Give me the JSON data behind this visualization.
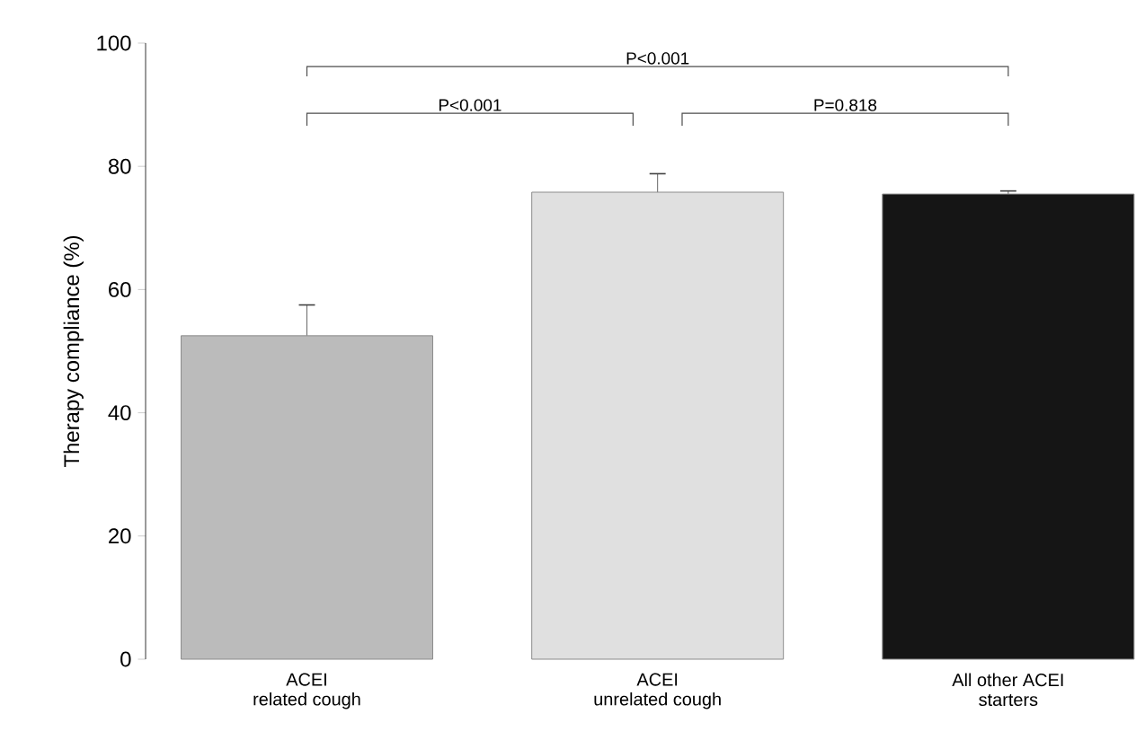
{
  "chart_data": {
    "type": "bar",
    "ylabel": "Therapy compliance (%)",
    "categories": [
      "ACEI\nrelated cough",
      "ACEI\nunrelated cough",
      "All other ACEI\nstarters"
    ],
    "values": [
      52.5,
      75.8,
      75.5
    ],
    "colors": [
      "#bbbbbb",
      "#e0e0e0",
      "#151515"
    ],
    "errors": [
      5,
      3,
      0.5
    ],
    "ylim": [
      0,
      100
    ],
    "yticks": [
      0,
      20,
      40,
      60,
      80,
      100
    ],
    "annotations": [
      "P<0.001",
      "P<0.001",
      "P=0.818"
    ]
  }
}
